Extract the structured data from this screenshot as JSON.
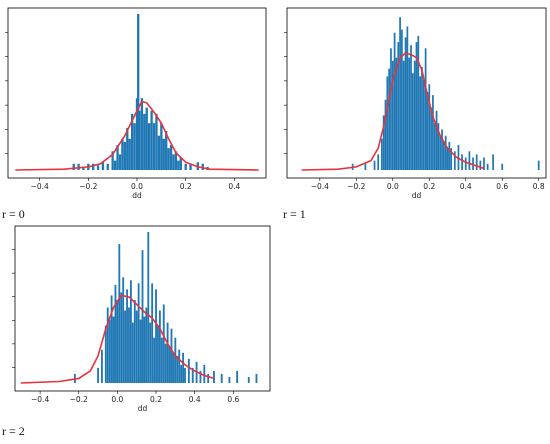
{
  "chart_data": [
    {
      "type": "bar",
      "panel_label": "r = 0",
      "xlabel": "dd",
      "ylabel": "",
      "xlim": [
        -0.53,
        0.53
      ],
      "xticks": [
        -0.4,
        -0.2,
        0.0,
        0.2,
        0.4
      ],
      "tick_labels": [
        "−0.4",
        "−0.2",
        "0.0",
        "0.2",
        "0.4"
      ],
      "ymax": 1.0,
      "bar_color": "#1f77b4",
      "kde_color": "#e8323c",
      "bins": [
        [
          -0.26,
          0.04
        ],
        [
          -0.24,
          0.04
        ],
        [
          -0.22,
          0.02
        ],
        [
          -0.2,
          0.04
        ],
        [
          -0.18,
          0.04
        ],
        [
          -0.16,
          0.03
        ],
        [
          -0.14,
          0.05
        ],
        [
          -0.12,
          0.04
        ],
        [
          -0.1,
          0.12
        ],
        [
          -0.09,
          0.06
        ],
        [
          -0.08,
          0.16
        ],
        [
          -0.07,
          0.1
        ],
        [
          -0.06,
          0.2
        ],
        [
          -0.05,
          0.18
        ],
        [
          -0.04,
          0.27
        ],
        [
          -0.03,
          0.2
        ],
        [
          -0.02,
          0.36
        ],
        [
          -0.01,
          0.3
        ],
        [
          0.0,
          0.46
        ],
        [
          0.005,
          1.0
        ],
        [
          0.01,
          0.38
        ],
        [
          0.02,
          0.46
        ],
        [
          0.03,
          0.36
        ],
        [
          0.04,
          0.4
        ],
        [
          0.05,
          0.3
        ],
        [
          0.06,
          0.38
        ],
        [
          0.07,
          0.3
        ],
        [
          0.08,
          0.36
        ],
        [
          0.09,
          0.22
        ],
        [
          0.1,
          0.3
        ],
        [
          0.11,
          0.2
        ],
        [
          0.12,
          0.25
        ],
        [
          0.13,
          0.14
        ],
        [
          0.14,
          0.16
        ],
        [
          0.15,
          0.1
        ],
        [
          0.16,
          0.12
        ],
        [
          0.17,
          0.06
        ],
        [
          0.18,
          0.08
        ],
        [
          0.2,
          0.04
        ],
        [
          0.22,
          0.04
        ],
        [
          0.25,
          0.05
        ],
        [
          0.27,
          0.04
        ],
        [
          0.29,
          0.02
        ]
      ],
      "kde": [
        [
          -0.5,
          0.0
        ],
        [
          -0.3,
          0.005
        ],
        [
          -0.2,
          0.02
        ],
        [
          -0.15,
          0.04
        ],
        [
          -0.1,
          0.1
        ],
        [
          -0.05,
          0.22
        ],
        [
          0.0,
          0.38
        ],
        [
          0.02,
          0.44
        ],
        [
          0.04,
          0.43
        ],
        [
          0.07,
          0.37
        ],
        [
          0.1,
          0.3
        ],
        [
          0.13,
          0.2
        ],
        [
          0.16,
          0.11
        ],
        [
          0.2,
          0.05
        ],
        [
          0.25,
          0.02
        ],
        [
          0.3,
          0.005
        ],
        [
          0.5,
          0.0
        ]
      ]
    },
    {
      "type": "bar",
      "panel_label": "r = 1",
      "xlabel": "dd",
      "ylabel": "",
      "xlim": [
        -0.58,
        0.84
      ],
      "xticks": [
        -0.4,
        -0.2,
        0.0,
        0.2,
        0.4,
        0.6,
        0.8
      ],
      "tick_labels": [
        "−0.4",
        "−0.2",
        "0.0",
        "0.2",
        "0.4",
        "0.6",
        "0.8"
      ],
      "ymax": 1.0,
      "bar_color": "#1f77b4",
      "kde_color": "#e8323c",
      "bins": [
        [
          -0.22,
          0.04
        ],
        [
          -0.15,
          0.04
        ],
        [
          -0.1,
          0.06
        ],
        [
          -0.08,
          0.1
        ],
        [
          -0.06,
          0.2
        ],
        [
          -0.05,
          0.35
        ],
        [
          -0.04,
          0.45
        ],
        [
          -0.03,
          0.6
        ],
        [
          -0.02,
          0.65
        ],
        [
          -0.01,
          0.78
        ],
        [
          0.0,
          0.7
        ],
        [
          0.01,
          0.88
        ],
        [
          0.02,
          0.72
        ],
        [
          0.03,
          0.82
        ],
        [
          0.04,
          0.98
        ],
        [
          0.05,
          0.9
        ],
        [
          0.06,
          0.7
        ],
        [
          0.07,
          0.85
        ],
        [
          0.08,
          0.92
        ],
        [
          0.09,
          0.72
        ],
        [
          0.1,
          0.8
        ],
        [
          0.11,
          0.62
        ],
        [
          0.12,
          0.7
        ],
        [
          0.13,
          0.82
        ],
        [
          0.14,
          0.86
        ],
        [
          0.15,
          0.6
        ],
        [
          0.16,
          0.66
        ],
        [
          0.17,
          0.58
        ],
        [
          0.18,
          0.78
        ],
        [
          0.19,
          0.5
        ],
        [
          0.2,
          0.55
        ],
        [
          0.21,
          0.4
        ],
        [
          0.22,
          0.48
        ],
        [
          0.23,
          0.3
        ],
        [
          0.24,
          0.38
        ],
        [
          0.25,
          0.3
        ],
        [
          0.26,
          0.22
        ],
        [
          0.27,
          0.26
        ],
        [
          0.28,
          0.18
        ],
        [
          0.29,
          0.22
        ],
        [
          0.3,
          0.14
        ],
        [
          0.31,
          0.18
        ],
        [
          0.32,
          0.14
        ],
        [
          0.34,
          0.12
        ],
        [
          0.36,
          0.16
        ],
        [
          0.38,
          0.1
        ],
        [
          0.4,
          0.08
        ],
        [
          0.42,
          0.12
        ],
        [
          0.44,
          0.08
        ],
        [
          0.46,
          0.1
        ],
        [
          0.48,
          0.06
        ],
        [
          0.5,
          0.08
        ],
        [
          0.52,
          0.04
        ],
        [
          0.55,
          0.1
        ],
        [
          0.6,
          0.04
        ],
        [
          0.8,
          0.06
        ]
      ],
      "kde": [
        [
          -0.5,
          0.0
        ],
        [
          -0.3,
          0.005
        ],
        [
          -0.2,
          0.02
        ],
        [
          -0.12,
          0.06
        ],
        [
          -0.08,
          0.14
        ],
        [
          -0.05,
          0.28
        ],
        [
          -0.02,
          0.46
        ],
        [
          0.01,
          0.62
        ],
        [
          0.04,
          0.72
        ],
        [
          0.07,
          0.75
        ],
        [
          0.1,
          0.74
        ],
        [
          0.13,
          0.72
        ],
        [
          0.16,
          0.64
        ],
        [
          0.19,
          0.48
        ],
        [
          0.22,
          0.34
        ],
        [
          0.26,
          0.22
        ],
        [
          0.3,
          0.14
        ],
        [
          0.35,
          0.08
        ],
        [
          0.4,
          0.05
        ],
        [
          0.45,
          0.03
        ],
        [
          0.5,
          0.01
        ]
      ]
    },
    {
      "type": "bar",
      "panel_label": "r = 2",
      "xlabel": "dd",
      "ylabel": "",
      "xlim": [
        -0.53,
        0.79
      ],
      "xticks": [
        -0.4,
        -0.2,
        0.0,
        0.2,
        0.4,
        0.6
      ],
      "tick_labels": [
        "−0.4",
        "−0.2",
        "0.0",
        "0.2",
        "0.4",
        "0.6"
      ],
      "ymax": 1.0,
      "bar_color": "#1f77b4",
      "kde_color": "#e8323c",
      "bins": [
        [
          -0.22,
          0.06
        ],
        [
          -0.1,
          0.1
        ],
        [
          -0.08,
          0.22
        ],
        [
          -0.06,
          0.38
        ],
        [
          -0.05,
          0.5
        ],
        [
          -0.04,
          0.42
        ],
        [
          -0.03,
          0.58
        ],
        [
          -0.02,
          0.44
        ],
        [
          -0.01,
          0.65
        ],
        [
          0.0,
          0.55
        ],
        [
          0.01,
          0.92
        ],
        [
          0.02,
          0.6
        ],
        [
          0.03,
          0.7
        ],
        [
          0.04,
          0.48
        ],
        [
          0.05,
          0.62
        ],
        [
          0.06,
          0.5
        ],
        [
          0.07,
          0.68
        ],
        [
          0.08,
          0.4
        ],
        [
          0.09,
          0.55
        ],
        [
          0.1,
          0.48
        ],
        [
          0.11,
          0.66
        ],
        [
          0.12,
          0.42
        ],
        [
          0.13,
          0.88
        ],
        [
          0.14,
          0.44
        ],
        [
          0.15,
          0.5
        ],
        [
          0.16,
          1.0
        ],
        [
          0.17,
          0.4
        ],
        [
          0.18,
          0.66
        ],
        [
          0.19,
          0.3
        ],
        [
          0.2,
          0.62
        ],
        [
          0.21,
          0.38
        ],
        [
          0.22,
          0.48
        ],
        [
          0.23,
          0.3
        ],
        [
          0.24,
          0.52
        ],
        [
          0.25,
          0.26
        ],
        [
          0.26,
          0.4
        ],
        [
          0.27,
          0.24
        ],
        [
          0.28,
          0.36
        ],
        [
          0.29,
          0.2
        ],
        [
          0.3,
          0.3
        ],
        [
          0.31,
          0.18
        ],
        [
          0.32,
          0.22
        ],
        [
          0.33,
          0.12
        ],
        [
          0.34,
          0.2
        ],
        [
          0.35,
          0.1
        ],
        [
          0.37,
          0.16
        ],
        [
          0.39,
          0.1
        ],
        [
          0.41,
          0.14
        ],
        [
          0.43,
          0.08
        ],
        [
          0.45,
          0.12
        ],
        [
          0.47,
          0.06
        ],
        [
          0.5,
          0.08
        ],
        [
          0.54,
          0.06
        ],
        [
          0.58,
          0.04
        ],
        [
          0.62,
          0.08
        ],
        [
          0.68,
          0.04
        ],
        [
          0.72,
          0.06
        ]
      ],
      "kde": [
        [
          -0.5,
          0.0
        ],
        [
          -0.3,
          0.01
        ],
        [
          -0.2,
          0.03
        ],
        [
          -0.14,
          0.08
        ],
        [
          -0.1,
          0.18
        ],
        [
          -0.06,
          0.36
        ],
        [
          -0.02,
          0.5
        ],
        [
          0.02,
          0.58
        ],
        [
          0.06,
          0.57
        ],
        [
          0.1,
          0.52
        ],
        [
          0.14,
          0.47
        ],
        [
          0.18,
          0.43
        ],
        [
          0.22,
          0.36
        ],
        [
          0.26,
          0.26
        ],
        [
          0.3,
          0.18
        ],
        [
          0.35,
          0.12
        ],
        [
          0.4,
          0.08
        ],
        [
          0.45,
          0.05
        ],
        [
          0.5,
          0.03
        ]
      ]
    }
  ]
}
